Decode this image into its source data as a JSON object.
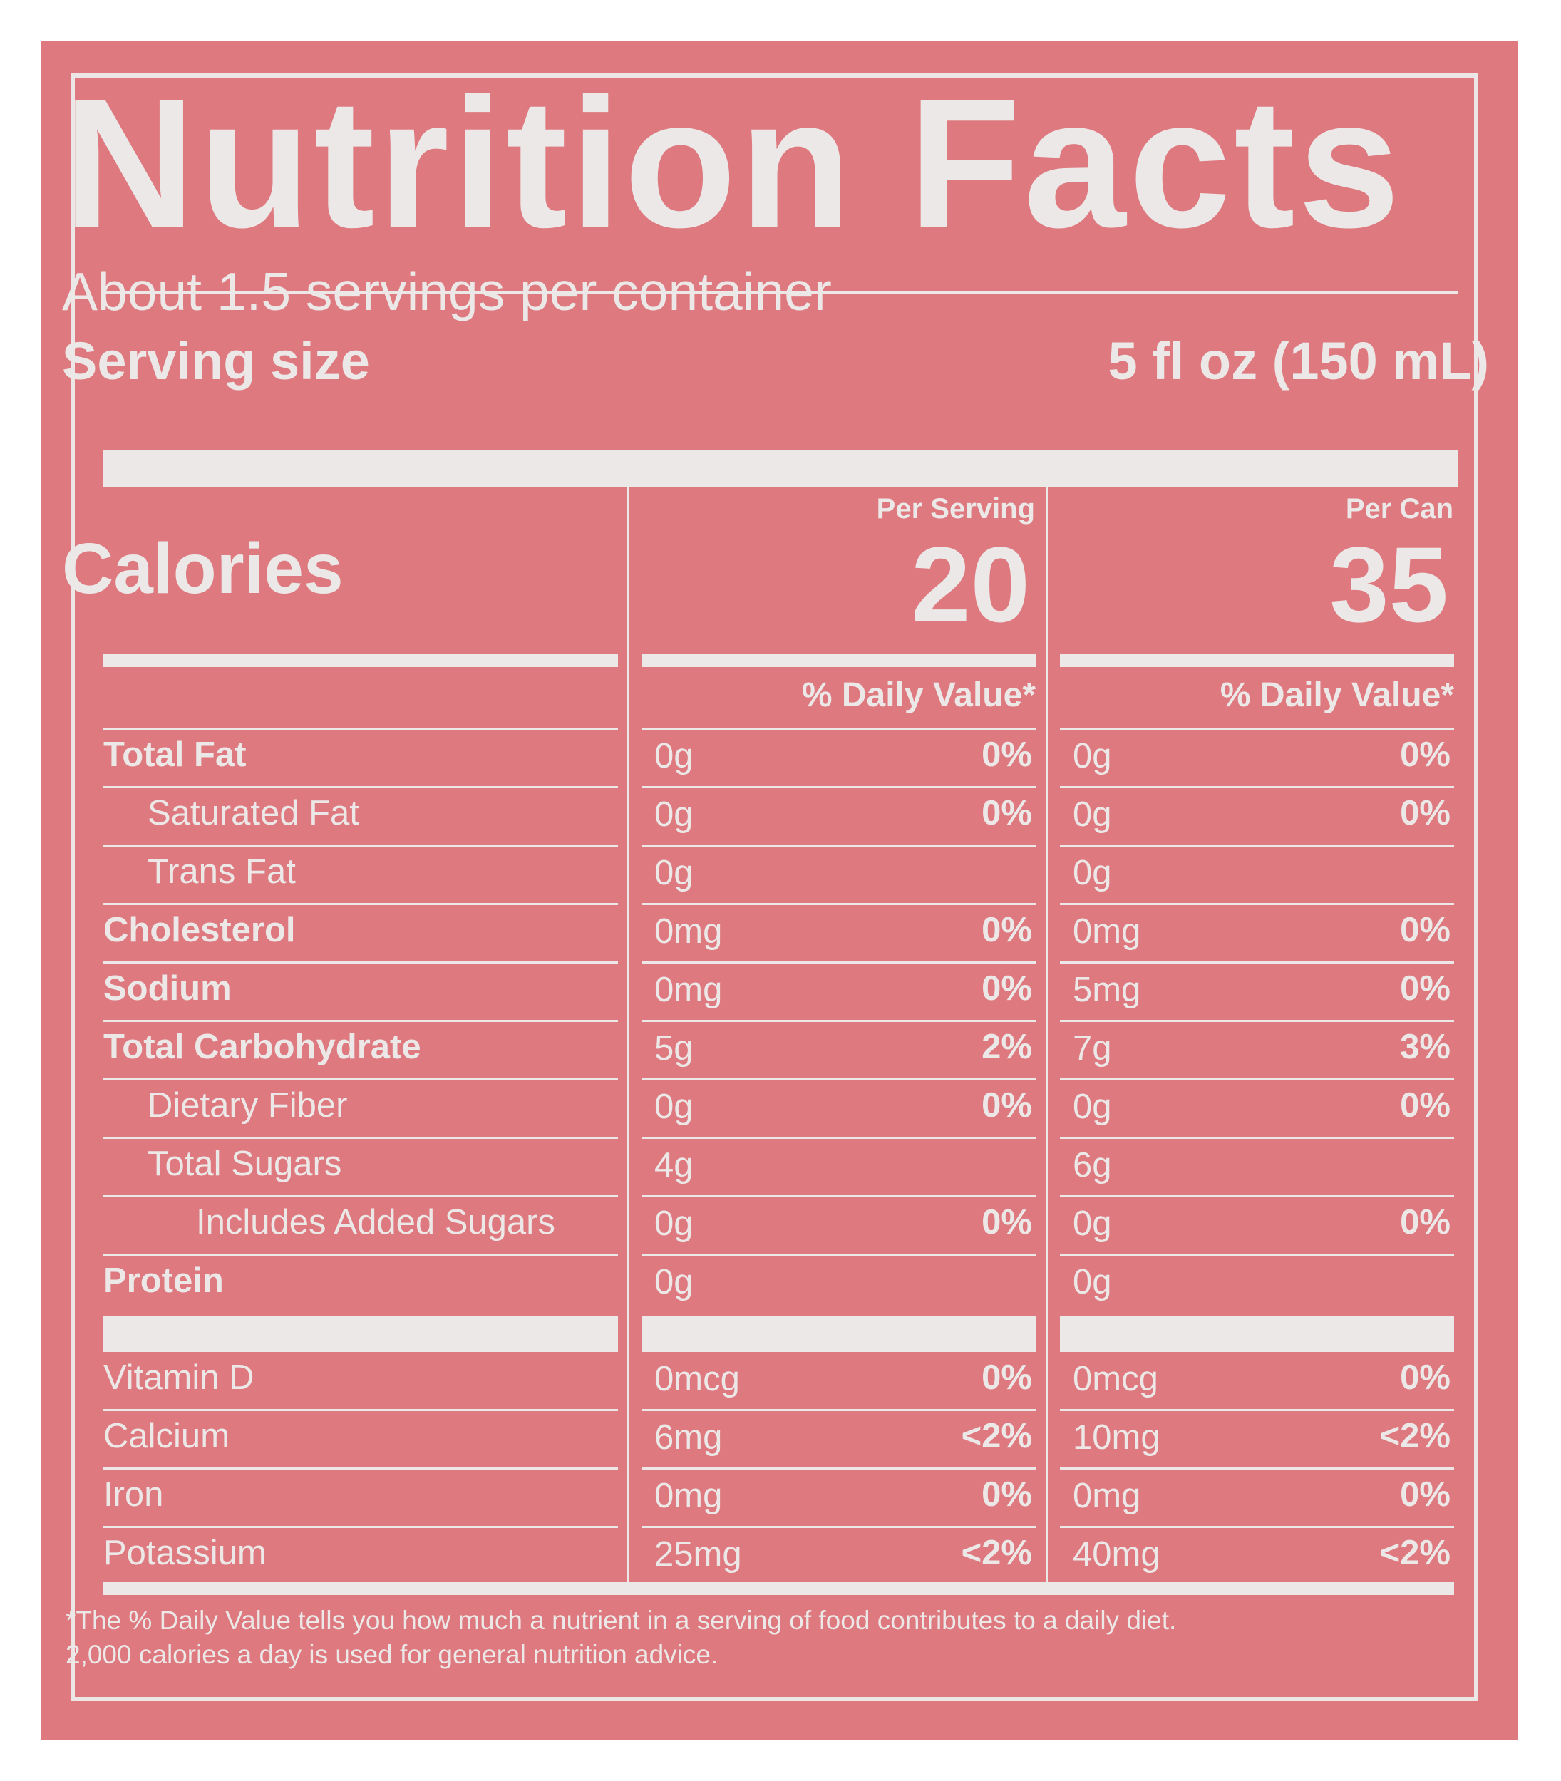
{
  "label": {
    "title": "Nutrition Facts",
    "servings_per_container": "About 1.5 servings per container",
    "serving_size_label": "Serving size",
    "serving_size_value": "5 fl oz (150 mL)",
    "columns": [
      {
        "header": "Per Serving",
        "calories": "20",
        "dv_header": "% Daily Value*"
      },
      {
        "header": "Per Can",
        "calories": "35",
        "dv_header": "% Daily Value*"
      }
    ],
    "calories_label": "Calories",
    "nutrients": [
      {
        "name": "Total Fat",
        "bold": true,
        "indent": 0,
        "serving_amount": "0g",
        "serving_dv": "0%",
        "can_amount": "0g",
        "can_dv": "0%"
      },
      {
        "name": "Saturated Fat",
        "bold": false,
        "indent": 1,
        "serving_amount": "0g",
        "serving_dv": "0%",
        "can_amount": "0g",
        "can_dv": "0%"
      },
      {
        "name": "Trans Fat",
        "bold": false,
        "indent": 1,
        "serving_amount": "0g",
        "serving_dv": "",
        "can_amount": "0g",
        "can_dv": ""
      },
      {
        "name": "Cholesterol",
        "bold": true,
        "indent": 0,
        "serving_amount": "0mg",
        "serving_dv": "0%",
        "can_amount": "0mg",
        "can_dv": "0%"
      },
      {
        "name": "Sodium",
        "bold": true,
        "indent": 0,
        "serving_amount": "0mg",
        "serving_dv": "0%",
        "can_amount": "5mg",
        "can_dv": "0%"
      },
      {
        "name": "Total Carbohydrate",
        "bold": true,
        "indent": 0,
        "serving_amount": "5g",
        "serving_dv": "2%",
        "can_amount": "7g",
        "can_dv": "3%"
      },
      {
        "name": "Dietary Fiber",
        "bold": false,
        "indent": 1,
        "serving_amount": "0g",
        "serving_dv": "0%",
        "can_amount": "0g",
        "can_dv": "0%"
      },
      {
        "name": "Total Sugars",
        "bold": false,
        "indent": 1,
        "serving_amount": "4g",
        "serving_dv": "",
        "can_amount": "6g",
        "can_dv": ""
      },
      {
        "name": "Includes Added Sugars",
        "bold": false,
        "indent": 2,
        "serving_amount": "0g",
        "serving_dv": "0%",
        "can_amount": "0g",
        "can_dv": "0%"
      },
      {
        "name": "Protein",
        "bold": true,
        "indent": 0,
        "serving_amount": "0g",
        "serving_dv": "",
        "can_amount": "0g",
        "can_dv": ""
      }
    ],
    "vitamins": [
      {
        "name": "Vitamin D",
        "serving_amount": "0mcg",
        "serving_dv": "0%",
        "can_amount": "0mcg",
        "can_dv": "0%"
      },
      {
        "name": "Calcium",
        "serving_amount": "6mg",
        "serving_dv": "<2%",
        "can_amount": "10mg",
        "can_dv": "<2%"
      },
      {
        "name": "Iron",
        "serving_amount": "0mg",
        "serving_dv": "0%",
        "can_amount": "0mg",
        "can_dv": "0%"
      },
      {
        "name": "Potassium",
        "serving_amount": "25mg",
        "serving_dv": "<2%",
        "can_amount": "40mg",
        "can_dv": "<2%"
      }
    ],
    "footnote_line1": "*The % Daily Value tells you how much a nutrient in a serving of food contributes to a daily diet.",
    "footnote_line2": "2,000 calories a day is used for general nutrition advice.",
    "colors": {
      "background": "#de7a7f",
      "ink": "#ece8e7",
      "page": "#ffffff"
    }
  }
}
